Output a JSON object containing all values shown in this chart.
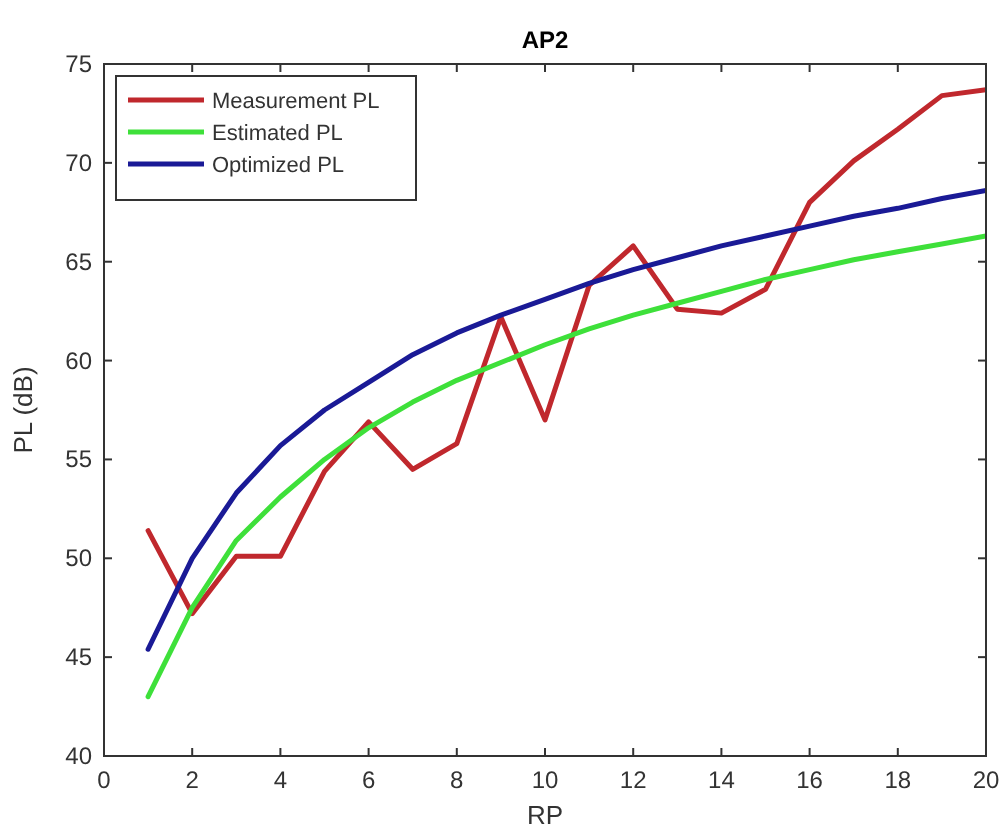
{
  "chart_data": {
    "type": "line",
    "title": "AP2",
    "xlabel": "RP",
    "ylabel": "PL (dB)",
    "x": [
      1,
      2,
      3,
      4,
      5,
      6,
      7,
      8,
      9,
      10,
      11,
      12,
      13,
      14,
      15,
      16,
      17,
      18,
      19,
      20
    ],
    "series": [
      {
        "name": "Measurement PL",
        "color": "#c0282d",
        "values": [
          51.4,
          47.2,
          50.1,
          50.1,
          54.4,
          56.9,
          54.5,
          55.8,
          62.2,
          57.0,
          63.8,
          65.8,
          62.6,
          62.4,
          63.6,
          68.0,
          70.1,
          71.7,
          73.4,
          73.7
        ]
      },
      {
        "name": "Estimated PL",
        "color": "#3ee03a",
        "values": [
          43.0,
          47.5,
          50.9,
          53.1,
          55.0,
          56.6,
          57.9,
          59.0,
          59.9,
          60.8,
          61.6,
          62.3,
          62.9,
          63.5,
          64.1,
          64.6,
          65.1,
          65.5,
          65.9,
          66.3
        ]
      },
      {
        "name": "Optimized PL",
        "color": "#1a1a96",
        "values": [
          45.4,
          50.0,
          53.3,
          55.7,
          57.5,
          58.9,
          60.3,
          61.4,
          62.3,
          63.1,
          63.9,
          64.6,
          65.2,
          65.8,
          66.3,
          66.8,
          67.3,
          67.7,
          68.2,
          68.6
        ]
      }
    ],
    "xlim": [
      0,
      20
    ],
    "xticks": [
      0,
      2,
      4,
      6,
      8,
      10,
      12,
      14,
      16,
      18,
      20
    ],
    "ylim": [
      40,
      75
    ],
    "yticks": [
      40,
      45,
      50,
      55,
      60,
      65,
      70,
      75
    ],
    "grid": false,
    "legend": "top left",
    "marker": "none",
    "line_style": "solid"
  }
}
